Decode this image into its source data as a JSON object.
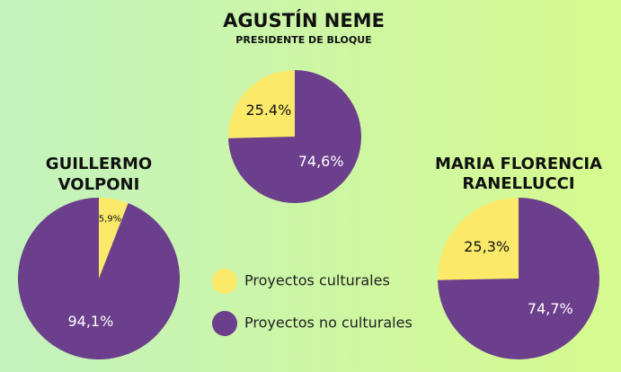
{
  "chart_data": [
    {
      "type": "pie",
      "title": [
        "AGUSTÍN NEME"
      ],
      "subtitle": "PRESIDENTE DE BLOQUE",
      "values": [
        25.4,
        74.6
      ],
      "value_labels": [
        "25.4%",
        "74,6%"
      ],
      "counterclockwise": true
    },
    {
      "type": "pie",
      "title": [
        "GUILLERMO",
        "VOLPONI"
      ],
      "values": [
        5.9,
        94.1
      ],
      "value_labels": [
        "5,9%",
        "94,1%"
      ],
      "counterclockwise": false
    },
    {
      "type": "pie",
      "title": [
        "MARIA FLORENCIA",
        "RANELLUCCI"
      ],
      "values": [
        25.3,
        74.7
      ],
      "value_labels": [
        "25,3%",
        "74,7%"
      ],
      "counterclockwise": true
    }
  ],
  "legend": {
    "labels": [
      "Proyectos culturales",
      "Proyectos no culturales"
    ],
    "colors": [
      "#fbe96a",
      "#6b3f8c"
    ]
  }
}
